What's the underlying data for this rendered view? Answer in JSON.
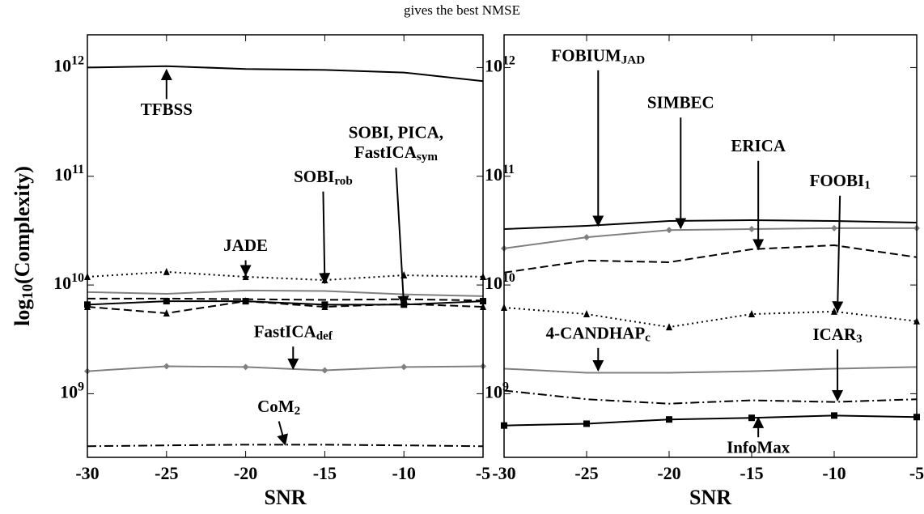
{
  "title": "gives the best NMSE",
  "chart_data": [
    {
      "type": "line",
      "ylabel": "log_10(Complexity)",
      "xlabel": "SNR",
      "log_y": true,
      "x": [
        -30,
        -25,
        -20,
        -15,
        -10,
        -5
      ],
      "xlim": [
        -30,
        -5
      ],
      "xticks": [
        -30,
        -25,
        -20,
        -15,
        -10,
        -5
      ],
      "ylim": [
        260000000,
        2000000000000
      ],
      "yticks": [
        {
          "value": 1000000000,
          "label": "10^9"
        },
        {
          "value": 10000000000,
          "label": "10^10"
        },
        {
          "value": 100000000000,
          "label": "10^11"
        },
        {
          "value": 1000000000000,
          "label": "10^12"
        }
      ],
      "series": [
        {
          "color": "#000000",
          "style": "solid",
          "marker": "none",
          "values": [
            1000000000000,
            1030000000000,
            970000000000,
            950000000000,
            900000000000,
            750000000000
          ]
        },
        {
          "color": "#000000",
          "style": "dotted",
          "marker": "triangle",
          "values": [
            11900000000,
            13200000000,
            11900000000,
            11100000000,
            12300000000,
            11900000000
          ]
        },
        {
          "color": "#808080",
          "style": "solid",
          "marker": "none",
          "values": [
            8600000000,
            8300000000,
            8900000000,
            8800000000,
            8200000000,
            7900000000
          ]
        },
        {
          "color": "#000000",
          "style": "dashed",
          "marker": "none",
          "values": [
            7500000000,
            7500000000,
            7400000000,
            7300000000,
            7400000000,
            7200000000
          ]
        },
        {
          "color": "#000000",
          "style": "solid",
          "marker": "square",
          "values": [
            6600000000,
            7100000000,
            7100000000,
            6600000000,
            6600000000,
            7100000000
          ]
        },
        {
          "color": "#000000",
          "style": "dashed",
          "marker": "triangle",
          "values": [
            6300000000,
            5500000000,
            7100000000,
            6300000000,
            6700000000,
            6300000000
          ]
        },
        {
          "color": "#808080",
          "style": "solid",
          "marker": "diamond",
          "values": [
            1610000000,
            1790000000,
            1760000000,
            1640000000,
            1760000000,
            1790000000
          ]
        },
        {
          "color": "#000000",
          "style": "dashdot",
          "marker": "none",
          "values": [
            329000000,
            335000000,
            340000000,
            340000000,
            335000000,
            329000000
          ]
        }
      ],
      "annotations": [
        {
          "text": "TFBSS",
          "xytext": [
            -25,
            400000000000
          ],
          "xy": [
            -25,
            950000000000
          ]
        },
        {
          "text": "SOBI, PICA,\nFastICA_sym",
          "xytext": [
            -10.5,
            197000000000
          ],
          "xy": [
            -10,
            6400000000
          ]
        },
        {
          "text": "SOBI_rob",
          "xytext": [
            -15.1,
            96000000000
          ],
          "xy": [
            -15,
            10400000000
          ]
        },
        {
          "text": "JADE",
          "xytext": [
            -20,
            22400000000
          ],
          "xy": [
            -20,
            12300000000
          ]
        },
        {
          "text": "FastICA_def",
          "xytext": [
            -17,
            3600000000
          ],
          "xy": [
            -17,
            1700000000
          ]
        },
        {
          "text": "CoM_2",
          "xytext": [
            -17.9,
            740000000
          ],
          "xy": [
            -17.5,
            340000000
          ]
        }
      ]
    },
    {
      "type": "line",
      "xlabel": "SNR",
      "log_y": true,
      "x": [
        -30,
        -25,
        -20,
        -15,
        -10,
        -5
      ],
      "xlim": [
        -30,
        -5
      ],
      "xticks": [
        -30,
        -25,
        -20,
        -15,
        -10,
        -5
      ],
      "ylim": [
        260000000,
        2000000000000
      ],
      "yticks": [
        {
          "value": 1000000000,
          "label": "10^9"
        },
        {
          "value": 10000000000,
          "label": "10^10"
        },
        {
          "value": 100000000000,
          "label": "10^11"
        },
        {
          "value": 1000000000000,
          "label": "10^12"
        }
      ],
      "series": [
        {
          "color": "#000000",
          "style": "solid",
          "marker": "none",
          "values": [
            32700000000,
            35000000000,
            38800000000,
            39500000000,
            38800000000,
            37500000000
          ]
        },
        {
          "color": "#808080",
          "style": "solid",
          "marker": "diamond",
          "values": [
            21700000000,
            27500000000,
            32000000000,
            32700000000,
            33300000000,
            33300000000
          ]
        },
        {
          "color": "#000000",
          "style": "dashed",
          "marker": "none",
          "values": [
            13000000000,
            16800000000,
            16200000000,
            21300000000,
            23200000000,
            18000000000
          ]
        },
        {
          "color": "#000000",
          "style": "dotted",
          "marker": "triangle",
          "values": [
            6200000000,
            5400000000,
            4100000000,
            5400000000,
            5700000000,
            4650000000
          ]
        },
        {
          "color": "#808080",
          "style": "solid",
          "marker": "none",
          "values": [
            1700000000,
            1560000000,
            1560000000,
            1610000000,
            1700000000,
            1760000000
          ]
        },
        {
          "color": "#000000",
          "style": "dashdot",
          "marker": "none",
          "values": [
            1070000000,
            890000000,
            810000000,
            870000000,
            840000000,
            890000000
          ]
        },
        {
          "color": "#000000",
          "style": "solid",
          "marker": "square",
          "values": [
            510000000,
            530000000,
            580000000,
            600000000,
            630000000,
            610000000
          ]
        }
      ],
      "annotations": [
        {
          "text": "FOBIUM_JAD",
          "xytext": [
            -24.3,
            1250000000000
          ],
          "xy": [
            -24.3,
            35000000000
          ]
        },
        {
          "text": "SIMBEC",
          "xytext": [
            -19.3,
            460000000000
          ],
          "xy": [
            -19.3,
            33300000000
          ]
        },
        {
          "text": "ERICA",
          "xytext": [
            -14.6,
            184000000000
          ],
          "xy": [
            -14.6,
            21300000000
          ]
        },
        {
          "text": "FOOBI_1",
          "xytext": [
            -9.65,
            88000000000
          ],
          "xy": [
            -9.8,
            5700000000
          ]
        },
        {
          "text": "4-CANDHAP_c",
          "xytext": [
            -24.3,
            3500000000
          ],
          "xy": [
            -24.3,
            1640000000
          ]
        },
        {
          "text": "ICAR_3",
          "xytext": [
            -9.8,
            3400000000
          ],
          "xy": [
            -9.8,
            870000000
          ]
        },
        {
          "text": "InfoMax",
          "xytext": [
            -14.6,
            310000000
          ],
          "xy": [
            -14.6,
            600000000
          ]
        }
      ]
    }
  ]
}
